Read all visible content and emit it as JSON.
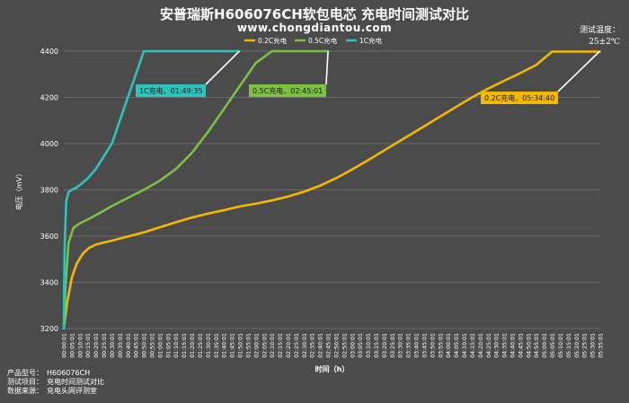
{
  "header": {
    "title": "安普瑞斯H606076CH软包电芯 充电时间测试对比",
    "subtitle": "www.chongdiantou.com",
    "temp_label": "测试温度：",
    "temp_value": "25±2℃"
  },
  "meta": {
    "rows": [
      {
        "label": "产品型号：",
        "value": "H606076CH"
      },
      {
        "label": "测试项目：",
        "value": "充电时间测试对比"
      },
      {
        "label": "数据来源：",
        "value": "充电头网评测室"
      }
    ]
  },
  "chart_data": {
    "type": "line",
    "title": "安普瑞斯H606076CH软包电芯 充电时间测试对比",
    "xlabel": "时间（h）",
    "ylabel": "电压（mV）",
    "ylim": [
      3200,
      4400
    ],
    "yticks": [
      3200,
      3400,
      3600,
      3800,
      4000,
      4200,
      4400
    ],
    "xlim": [
      0,
      335
    ],
    "x_unit": "minutes",
    "xtick_labels": [
      "00:00:01",
      "00:05:01",
      "00:10:01",
      "00:15:01",
      "00:20:01",
      "00:25:01",
      "00:30:01",
      "00:35:01",
      "00:40:01",
      "00:45:01",
      "00:50:01",
      "00:55:01",
      "01:00:01",
      "01:05:01",
      "01:10:01",
      "01:15:01",
      "01:20:01",
      "01:25:01",
      "01:30:01",
      "01:35:01",
      "01:40:01",
      "01:45:01",
      "01:50:01",
      "01:55:01",
      "02:00:01",
      "02:05:01",
      "02:10:01",
      "02:15:01",
      "02:20:01",
      "02:25:01",
      "02:30:01",
      "02:35:01",
      "02:40:01",
      "02:45:01",
      "02:50:01",
      "02:55:01",
      "03:00:01",
      "03:05:01",
      "03:10:01",
      "03:15:01",
      "03:20:01",
      "03:25:01",
      "03:30:01",
      "03:35:01",
      "03:40:01",
      "03:45:01",
      "03:50:01",
      "03:55:01",
      "04:00:01",
      "04:05:01",
      "04:10:01",
      "04:15:01",
      "04:20:01",
      "04:25:01",
      "04:30:01",
      "04:35:01",
      "04:40:01",
      "04:45:01",
      "04:50:01",
      "04:55:01",
      "05:00:01",
      "05:05:01",
      "05:10:01",
      "05:15:01",
      "05:20:01",
      "05:25:01",
      "05:30:01",
      "05:35:01"
    ],
    "legend_position": "top-center",
    "series": [
      {
        "name": "0.2C充电",
        "color": "#f5b800",
        "x": [
          0,
          2,
          5,
          8,
          12,
          16,
          20,
          25,
          30,
          40,
          50,
          60,
          70,
          80,
          90,
          100,
          110,
          120,
          130,
          140,
          150,
          160,
          170,
          180,
          190,
          200,
          210,
          220,
          230,
          240,
          250,
          255,
          265,
          275,
          285,
          295,
          305,
          320,
          334.7
        ],
        "y": [
          3200,
          3310,
          3420,
          3480,
          3525,
          3550,
          3563,
          3572,
          3580,
          3598,
          3616,
          3638,
          3660,
          3680,
          3697,
          3712,
          3728,
          3740,
          3754,
          3771,
          3792,
          3818,
          3850,
          3888,
          3928,
          3970,
          4012,
          4054,
          4096,
          4138,
          4180,
          4200,
          4238,
          4272,
          4305,
          4340,
          4398,
          4398,
          4398
        ]
      },
      {
        "name": "0.5C充电",
        "color": "#7dc142",
        "x": [
          0,
          1,
          3,
          6,
          10,
          15,
          20,
          25,
          30,
          40,
          50,
          60,
          70,
          80,
          90,
          100,
          110,
          120,
          130,
          140,
          150,
          160,
          165.0
        ],
        "y": [
          3200,
          3380,
          3570,
          3635,
          3655,
          3672,
          3690,
          3710,
          3730,
          3765,
          3800,
          3840,
          3890,
          3960,
          4050,
          4150,
          4250,
          4350,
          4400,
          4400,
          4400,
          4400,
          4400
        ]
      },
      {
        "name": "1C充电",
        "color": "#2ec4bc",
        "x": [
          0,
          0.5,
          1.5,
          3,
          5,
          8,
          10,
          15,
          20,
          30,
          40,
          50,
          60,
          70,
          80,
          90,
          100,
          109.6
        ],
        "y": [
          3200,
          3550,
          3750,
          3790,
          3800,
          3810,
          3820,
          3850,
          3890,
          4000,
          4200,
          4400,
          4400,
          4400,
          4400,
          4400,
          4400,
          4400
        ]
      }
    ],
    "annotations": [
      {
        "text": "1C充电，01:49:35",
        "series": 2,
        "x": 109.6,
        "y": 4400
      },
      {
        "text": "0.5C充电，02:45:01",
        "series": 1,
        "x": 165.0,
        "y": 4400
      },
      {
        "text": "0.2C充电，05:34:40",
        "series": 0,
        "x": 334.7,
        "y": 4400
      }
    ]
  }
}
